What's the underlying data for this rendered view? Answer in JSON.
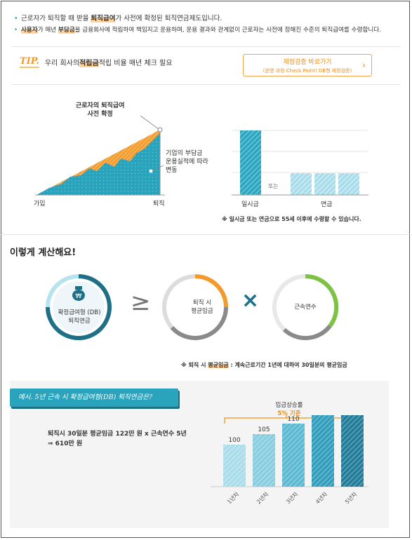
{
  "bullets": [
    {
      "pre": "근로자가 퇴직할 때 받을 ",
      "hl": "퇴직급여",
      "post": "가 사전에 확정된 퇴직연금제도입니다."
    },
    {
      "pre": "",
      "hl": "사용자",
      "mid": "가 매년 ",
      "hl2": "부담금",
      "post": "을 금융회사에 적립하여 책임지고 운용하며, 운용 결과와 관계없이 근로자는 사전에 정해진 수준의 퇴직급여를 수령합니다."
    }
  ],
  "tip": {
    "label": "TIP.",
    "pre": "우리 회사의 ",
    "hl": "적립금",
    "post": " 적립 비율 매년 체크 필요",
    "button_line1": "재정검증 바로가기",
    "button_line2": "(운영 과정 Check Point! DB형 재정검증)",
    "button_arrow": "›"
  },
  "area_chart": {
    "top_label_1": "근로자의 퇴직급여",
    "top_label_2": "사전 확정",
    "side_label_1": "기업의 부담금",
    "side_label_2": "운용실적에 따라",
    "side_label_3": "변동",
    "x_start": "가입",
    "x_end": "퇴직"
  },
  "bar_chart": {
    "or_label": "또는",
    "x_label_1": "일시금",
    "x_label_2": "연금"
  },
  "note1": "※ 일시금 또는 연금으로 55세 이후에 수령할 수 있습니다.",
  "section_title": "이렇게 계산해요!",
  "formula": {
    "circle1_line1": "확정급여형 (DB)",
    "circle1_line2": "퇴직연금",
    "op1": "≥",
    "circle2_line1": "퇴직 시",
    "circle2_line2": "평균임금",
    "op2": "×",
    "circle3_line1": "근속연수"
  },
  "note2_pre": "※ 퇴직 시 ",
  "note2_hl": "평균임금",
  "note2_post": " : 계속근로기간 1년에 대하여 30일분의 평균임금",
  "example": {
    "callout": "예시. 5년 근속 시 확정급여형(DB) 퇴직연금은?",
    "line1": "퇴직시 30일분 평균임금 122만 원 x 근속연수 5년",
    "line2": "⇒ 610만 원",
    "rate_label": "임금상승률",
    "rate_value": "5% 기준"
  },
  "chart_data": {
    "type": "bar",
    "categories": [
      "1년차",
      "2년차",
      "3년차",
      "4년차",
      "5년차"
    ],
    "values": [
      100,
      105,
      110,
      116,
      122
    ],
    "colors": [
      "#a9dcea",
      "#86cde0",
      "#5ab8d2",
      "#2f9cbc",
      "#1f7a98"
    ]
  },
  "colors": {
    "accent": "#2aa3bd",
    "orange": "#f39a2c",
    "dark_blue": "#1f6f86",
    "green": "#7dc242",
    "gray": "#777777"
  }
}
